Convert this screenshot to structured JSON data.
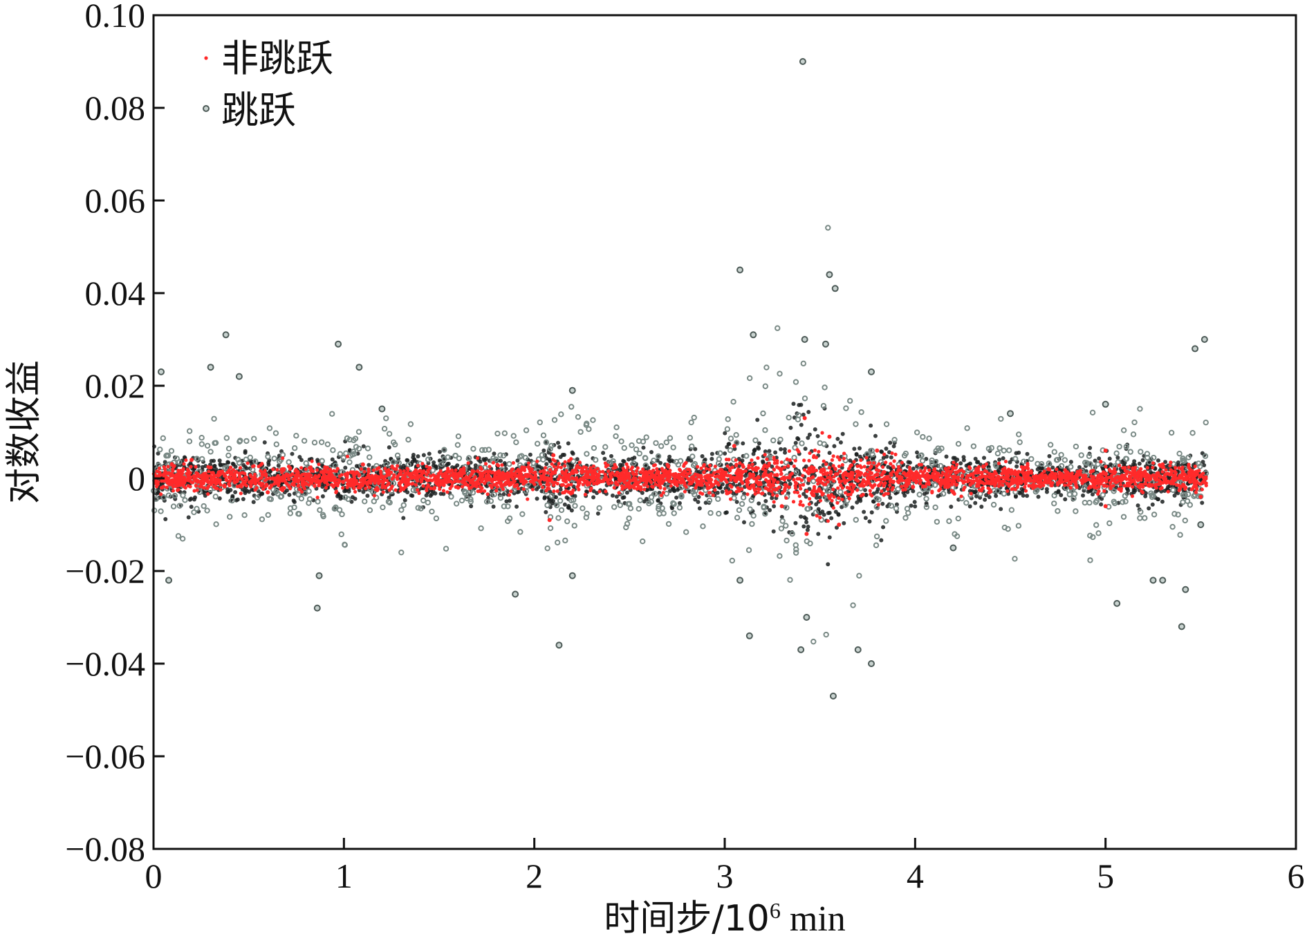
{
  "chart_data": {
    "type": "scatter",
    "title": "",
    "xlabel": "时间步/10",
    "xlabel_exponent": "6",
    "xlabel_unit": " min",
    "ylabel": "对数收益",
    "xlim": [
      0,
      6
    ],
    "ylim": [
      -0.08,
      0.1
    ],
    "x_ticks": [
      0,
      1,
      2,
      3,
      4,
      5,
      6
    ],
    "x_tick_labels": [
      "0",
      "1",
      "2",
      "3",
      "4",
      "5",
      "6"
    ],
    "y_ticks": [
      0.1,
      0.08,
      0.06,
      0.04,
      0.02,
      0,
      -0.02,
      -0.04,
      -0.06,
      -0.08
    ],
    "y_tick_labels": [
      "0.10",
      "0.08",
      "0.06",
      "0.04",
      "0.02",
      "0",
      "−0.02",
      "−0.04",
      "−0.06",
      "−0.08"
    ],
    "grid": false,
    "legend_position": "top-left",
    "series": [
      {
        "name": "非跳跃",
        "color": "#ff2a2a",
        "marker": "dot",
        "description_band": "dense band concentrated within about ±0.005 of zero, widening near x≈3.0–3.8",
        "points": [
          [
            0.2,
            0.004
          ],
          [
            0.6,
            -0.003
          ],
          [
            1.1,
            0.003
          ],
          [
            1.6,
            -0.002
          ],
          [
            2.1,
            0.005
          ],
          [
            2.5,
            -0.002
          ],
          [
            3.05,
            0.007
          ],
          [
            3.3,
            -0.006
          ],
          [
            3.42,
            0.013
          ],
          [
            3.43,
            -0.012
          ],
          [
            3.55,
            0.009
          ],
          [
            3.6,
            -0.01
          ],
          [
            3.8,
            0.006
          ],
          [
            4.2,
            -0.003
          ],
          [
            4.7,
            0.002
          ],
          [
            5.0,
            0.006
          ],
          [
            5.0,
            -0.006
          ],
          [
            5.3,
            0.003
          ],
          [
            5.5,
            -0.004
          ],
          [
            2.08,
            -0.009
          ]
        ]
      },
      {
        "name": "跳跃",
        "color": "#7a8a86",
        "marker": "circle",
        "description_band": "dark cloud within about ±0.008 of zero with scattered outliers",
        "points": [
          [
            0.04,
            0.023
          ],
          [
            0.08,
            -0.022
          ],
          [
            0.3,
            0.024
          ],
          [
            0.38,
            0.031
          ],
          [
            0.45,
            0.022
          ],
          [
            0.87,
            -0.021
          ],
          [
            0.86,
            -0.028
          ],
          [
            0.97,
            0.029
          ],
          [
            1.08,
            0.024
          ],
          [
            1.2,
            0.015
          ],
          [
            1.9,
            -0.025
          ],
          [
            2.13,
            -0.036
          ],
          [
            2.2,
            0.019
          ],
          [
            2.2,
            -0.021
          ],
          [
            3.08,
            0.045
          ],
          [
            3.08,
            -0.022
          ],
          [
            3.15,
            0.031
          ],
          [
            3.13,
            -0.034
          ],
          [
            3.41,
            0.09
          ],
          [
            3.42,
            0.03
          ],
          [
            3.4,
            -0.037
          ],
          [
            3.43,
            -0.03
          ],
          [
            3.53,
            0.029
          ],
          [
            3.55,
            0.044
          ],
          [
            3.58,
            0.041
          ],
          [
            3.57,
            -0.047
          ],
          [
            3.7,
            -0.037
          ],
          [
            3.77,
            -0.04
          ],
          [
            3.77,
            0.023
          ],
          [
            4.2,
            -0.015
          ],
          [
            4.5,
            0.014
          ],
          [
            5.06,
            -0.027
          ],
          [
            5.0,
            0.016
          ],
          [
            5.25,
            -0.022
          ],
          [
            5.3,
            -0.022
          ],
          [
            5.42,
            -0.024
          ],
          [
            5.4,
            -0.032
          ],
          [
            5.47,
            0.028
          ],
          [
            5.52,
            0.03
          ],
          [
            5.5,
            -0.01
          ]
        ]
      }
    ]
  }
}
